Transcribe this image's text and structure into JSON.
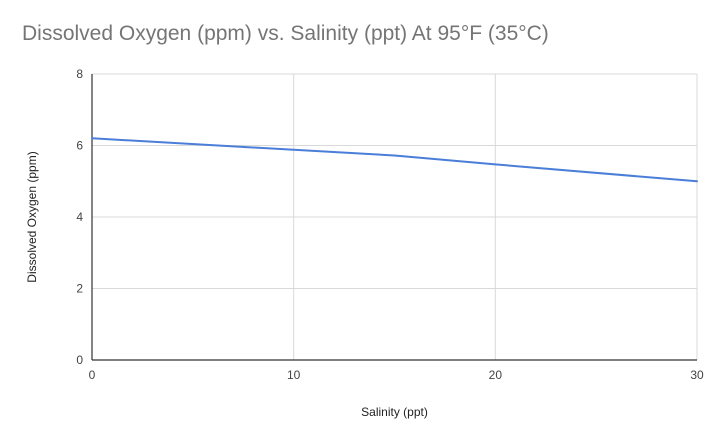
{
  "chart_data": {
    "type": "line",
    "title": "Dissolved Oxygen (ppm) vs. Salinity (ppt) At 95°F (35°C)",
    "xlabel": "Salinity (ppt)",
    "ylabel": "Dissolved Oxygen (ppm)",
    "xlim": [
      0,
      30
    ],
    "ylim": [
      0,
      8
    ],
    "x_ticks": [
      "0",
      "10",
      "20",
      "30"
    ],
    "y_ticks": [
      "0",
      "2",
      "4",
      "6",
      "8"
    ],
    "grid": true,
    "legend": "none",
    "series": [
      {
        "x": [
          0,
          10,
          15,
          20,
          30
        ],
        "y": [
          6.2,
          5.88,
          5.72,
          5.47,
          5.0
        ],
        "color": "#4a7ed8"
      }
    ]
  }
}
